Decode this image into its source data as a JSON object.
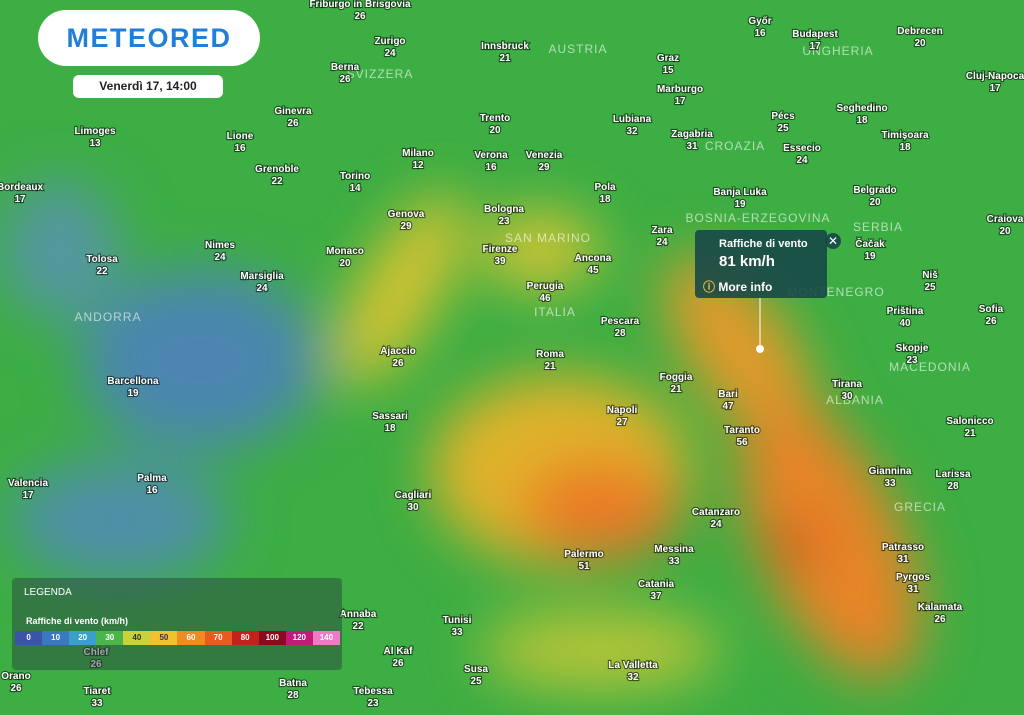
{
  "header": {
    "logo": "METEORED",
    "date": "Venerdì 17, 14:00"
  },
  "popup": {
    "title": "Raffiche di vento",
    "value": "81 km/h",
    "link": "More info"
  },
  "legend": {
    "title": "LEGENDA",
    "subtitle": "Raffiche di vento (km/h)",
    "stops": [
      0,
      10,
      20,
      30,
      40,
      50,
      60,
      70,
      80,
      100,
      120,
      140
    ]
  },
  "countries": [
    "AUSTRIA",
    "UNGHERIA",
    "SVIZZERA",
    "CROAZIA",
    "BOSNIA-ERZEGOVINA",
    "SERBIA",
    "SAN MARINO",
    "ITALIA",
    "MONTENEGRO",
    "ANDORRA",
    "MACEDONIA",
    "ALBANIA",
    "GRECIA"
  ],
  "cities": [
    {
      "name": "Friburgo in Brisgovia",
      "value": 26
    },
    {
      "name": "Zurigo",
      "value": 24
    },
    {
      "name": "Innsbruck",
      "value": 21
    },
    {
      "name": "Graz",
      "value": 15
    },
    {
      "name": "Győr",
      "value": 16
    },
    {
      "name": "Budapest",
      "value": 17
    },
    {
      "name": "Debrecen",
      "value": 20
    },
    {
      "name": "Cluj-Napoca",
      "value": 17
    },
    {
      "name": "Berna",
      "value": 26
    },
    {
      "name": "Ginevra",
      "value": 26
    },
    {
      "name": "Limoges",
      "value": 13
    },
    {
      "name": "Lione",
      "value": 16
    },
    {
      "name": "Trento",
      "value": 20
    },
    {
      "name": "Lubiana",
      "value": 32
    },
    {
      "name": "Marburgo",
      "value": 17
    },
    {
      "name": "Pécs",
      "value": 25
    },
    {
      "name": "Seghedino",
      "value": 18
    },
    {
      "name": "Timișoara",
      "value": 18
    },
    {
      "name": "Zagabria",
      "value": 31
    },
    {
      "name": "Essecio",
      "value": 24
    },
    {
      "name": "Milano",
      "value": 12
    },
    {
      "name": "Verona",
      "value": 16
    },
    {
      "name": "Venezia",
      "value": 29
    },
    {
      "name": "Grenoble",
      "value": 22
    },
    {
      "name": "Torino",
      "value": 14
    },
    {
      "name": "Bordeaux",
      "value": 17
    },
    {
      "name": "Pola",
      "value": 18
    },
    {
      "name": "Banja Luka",
      "value": 19
    },
    {
      "name": "Belgrado",
      "value": 20
    },
    {
      "name": "Craiova",
      "value": 20
    },
    {
      "name": "Genova",
      "value": 29
    },
    {
      "name": "Bologna",
      "value": 23
    },
    {
      "name": "Zara",
      "value": 24
    },
    {
      "name": "Monaco",
      "value": 20
    },
    {
      "name": "Nimes",
      "value": 24
    },
    {
      "name": "Firenze",
      "value": 39
    },
    {
      "name": "Ancona",
      "value": 45
    },
    {
      "name": "Čačak",
      "value": 19
    },
    {
      "name": "Tolosa",
      "value": 22
    },
    {
      "name": "Marsiglia",
      "value": 24
    },
    {
      "name": "Perugia",
      "value": 46
    },
    {
      "name": "Niš",
      "value": 25
    },
    {
      "name": "Pescara",
      "value": 28
    },
    {
      "name": "Priština",
      "value": 40
    },
    {
      "name": "Sofia",
      "value": 26
    },
    {
      "name": "Ajaccio",
      "value": 26
    },
    {
      "name": "Roma",
      "value": 21
    },
    {
      "name": "Skopje",
      "value": 23
    },
    {
      "name": "Barcellona",
      "value": 19
    },
    {
      "name": "Foggia",
      "value": 21
    },
    {
      "name": "Tirana",
      "value": 30
    },
    {
      "name": "Bari",
      "value": 47
    },
    {
      "name": "Sassari",
      "value": 18
    },
    {
      "name": "Napoli",
      "value": 27
    },
    {
      "name": "Taranto",
      "value": 56
    },
    {
      "name": "Salonicco",
      "value": 21
    },
    {
      "name": "Palma",
      "value": 16
    },
    {
      "name": "Giannina",
      "value": 33
    },
    {
      "name": "Larissa",
      "value": 28
    },
    {
      "name": "Valencia",
      "value": 17
    },
    {
      "name": "Cagliari",
      "value": 30
    },
    {
      "name": "Catanzaro",
      "value": 24
    },
    {
      "name": "Patrasso",
      "value": 31
    },
    {
      "name": "Messina",
      "value": 33
    },
    {
      "name": "Palermo",
      "value": 51
    },
    {
      "name": "Pyrgos",
      "value": 31
    },
    {
      "name": "Catania",
      "value": 37
    },
    {
      "name": "Kalamata",
      "value": 26
    },
    {
      "name": "Annaba",
      "value": 22
    },
    {
      "name": "Tunisi",
      "value": 33
    },
    {
      "name": "Chlef",
      "value": 26
    },
    {
      "name": "Al Kaf",
      "value": 26
    },
    {
      "name": "Orano",
      "value": 26
    },
    {
      "name": "Susa",
      "value": 25
    },
    {
      "name": "La Valletta",
      "value": 32
    },
    {
      "name": "Tiaret",
      "value": 33
    },
    {
      "name": "Batna",
      "value": 28
    },
    {
      "name": "Tebessa",
      "value": 23
    }
  ]
}
